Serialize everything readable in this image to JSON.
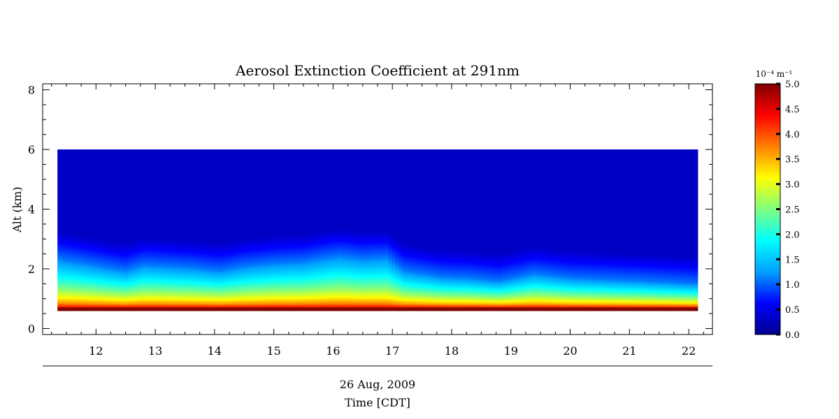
{
  "chart_data": {
    "type": "heatmap",
    "title": "Aerosol Extinction Coefficient at 291nm",
    "ylabel": "Alt (km)",
    "xlabel_date": "26 Aug, 2009",
    "xlabel": "Time [CDT]",
    "xlim": [
      11.1,
      22.4
    ],
    "ylim": [
      -0.2,
      8.2
    ],
    "x_ticks": [
      12,
      13,
      14,
      15,
      16,
      17,
      18,
      19,
      20,
      21,
      22
    ],
    "y_ticks": [
      0,
      2,
      4,
      6,
      8
    ],
    "data_extent": {
      "x": [
        11.35,
        22.15
      ],
      "y": [
        0.6,
        6.0
      ]
    },
    "grid": false,
    "colorbar": {
      "unit_label": "10⁻⁴ m⁻¹",
      "range": [
        0.0,
        5.0
      ],
      "ticks": [
        "0.0",
        "0.5",
        "1.0",
        "1.5",
        "2.0",
        "2.5",
        "3.0",
        "3.5",
        "4.0",
        "4.5",
        "5.0"
      ],
      "colors": [
        "#00008f",
        "#0000ff",
        "#00a0ff",
        "#00ffff",
        "#80ff80",
        "#ffff00",
        "#ff8000",
        "#ff0000",
        "#800000"
      ]
    },
    "columns_time": [
      11.35,
      11.8,
      12.2,
      12.5,
      12.8,
      13.2,
      13.6,
      14.1,
      14.5,
      15.0,
      15.5,
      16.1,
      16.5,
      16.9,
      17.2,
      17.8,
      18.3,
      18.8,
      19.4,
      20.0,
      20.6,
      21.2,
      21.7,
      22.15
    ],
    "layer_top_km": [
      2.35,
      2.2,
      2.05,
      1.95,
      2.15,
      2.1,
      2.05,
      1.95,
      2.1,
      2.2,
      2.25,
      2.45,
      2.35,
      2.4,
      1.95,
      1.75,
      1.7,
      1.6,
      1.85,
      1.7,
      1.65,
      1.6,
      1.55,
      1.5
    ],
    "peak_value": 5.0,
    "background_value": 0.3
  }
}
